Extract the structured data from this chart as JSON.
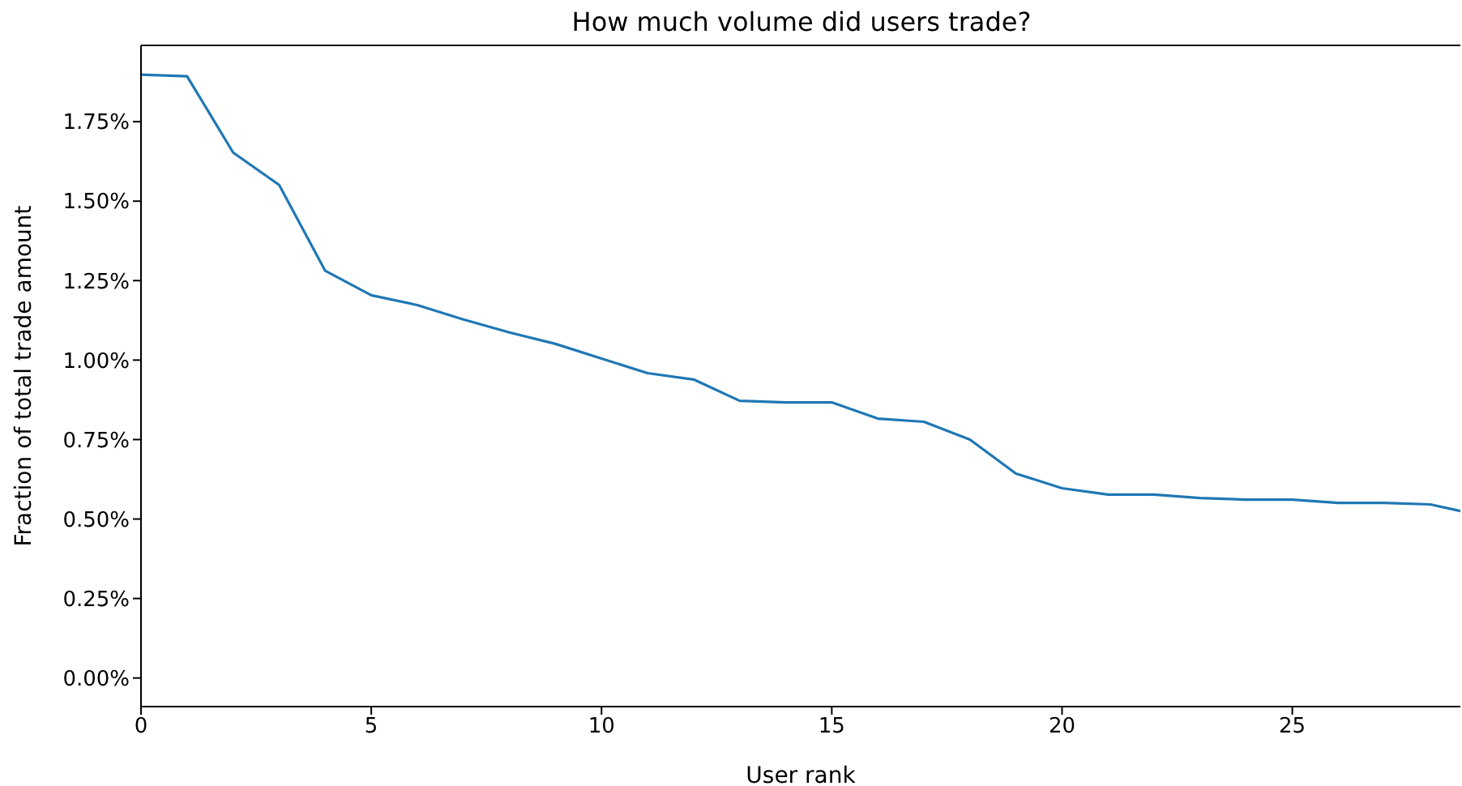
{
  "chart_data": {
    "type": "line",
    "title": "How much volume did users trade?",
    "xlabel": "User rank",
    "ylabel": "Fraction of total trade amount",
    "x": [
      0,
      1,
      2,
      3,
      4,
      5,
      6,
      7,
      8,
      9,
      10,
      11,
      12,
      13,
      14,
      15,
      16,
      17,
      18,
      19,
      20,
      21,
      22,
      23,
      24,
      25,
      26,
      27,
      28,
      28.65
    ],
    "series": [
      {
        "color": "#1f77b4",
        "values": [
          1.898,
          1.893,
          1.653,
          1.551,
          1.281,
          1.204,
          1.173,
          1.128,
          1.087,
          1.051,
          1.005,
          0.959,
          0.939,
          0.872,
          0.867,
          0.867,
          0.816,
          0.806,
          0.75,
          0.643,
          0.597,
          0.577,
          0.577,
          0.566,
          0.561,
          0.561,
          0.551,
          0.551,
          0.546,
          0.525
        ]
      }
    ],
    "xlim": [
      0,
      28.65
    ],
    "xticks": [
      0,
      5,
      10,
      15,
      20,
      25
    ],
    "ylim": [
      -0.09,
      1.99
    ],
    "yticks": [
      {
        "value": 0,
        "label": "0.00%"
      },
      {
        "value": 0.25,
        "label": "0.25%"
      },
      {
        "value": 0.5,
        "label": "0.50%"
      },
      {
        "value": 0.75,
        "label": "0.75%"
      },
      {
        "value": 1,
        "label": "1.00%"
      },
      {
        "value": 1.25,
        "label": "1.25%"
      },
      {
        "value": 1.5,
        "label": "1.50%"
      },
      {
        "value": 1.75,
        "label": "1.75%"
      }
    ],
    "grid": false,
    "legend": false,
    "marker": "none",
    "line_style": "solid"
  }
}
